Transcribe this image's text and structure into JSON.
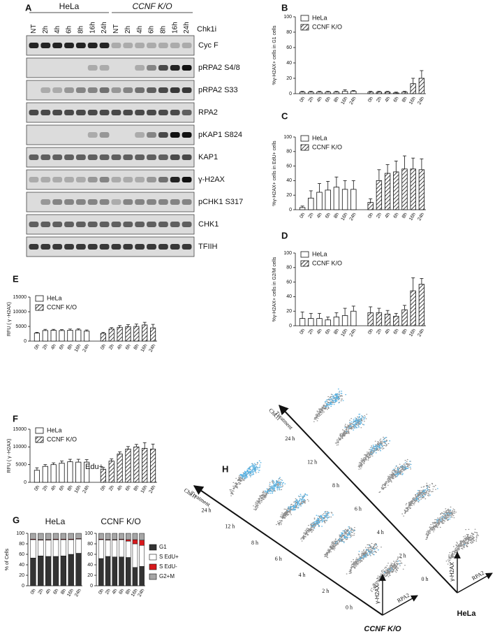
{
  "blot": {
    "panel": "A",
    "groups": [
      "HeLa",
      "CCNF K/O"
    ],
    "lanes": [
      "NT",
      "2h",
      "4h",
      "6h",
      "8h",
      "16h",
      "24h"
    ],
    "treatment": "Chk1i",
    "rows": [
      "Cyc F",
      "pRPA2 S4/8",
      "pRPA2 S33",
      "RPA2",
      "pKAP1 S824",
      "KAP1",
      "γ-H2AX",
      "pCHK1 S317",
      "CHK1",
      "TFIIH"
    ]
  },
  "chart_data": [
    {
      "type": "bar",
      "panel": "B",
      "ylabel": "%γ-H2AX+ cells in G1 cells",
      "categories": [
        "0h",
        "2h",
        "4h",
        "6h",
        "8h",
        "16h",
        "24h"
      ],
      "series": [
        {
          "name": "HeLa",
          "color": "#ffffff",
          "values": [
            2,
            2,
            2,
            2,
            2,
            3,
            3
          ],
          "errors": [
            1,
            1,
            1,
            1,
            1,
            2,
            1
          ]
        },
        {
          "name": "CCNF K/O",
          "color": "#ffffff",
          "pattern": "hatch",
          "values": [
            2,
            2,
            2,
            1,
            2,
            13,
            20
          ],
          "errors": [
            1,
            1,
            1,
            1,
            1,
            7,
            10
          ]
        }
      ],
      "ylim": [
        0,
        100
      ],
      "yticks": [
        0,
        20,
        40,
        60,
        80,
        100
      ],
      "legend": "upper left"
    },
    {
      "type": "bar",
      "panel": "C",
      "ylabel": "%γ-H2AX+ cells in EdU+ cells",
      "categories": [
        "0h",
        "2h",
        "4h",
        "6h",
        "8h",
        "16h",
        "24h"
      ],
      "series": [
        {
          "name": "HeLa",
          "color": "#ffffff",
          "values": [
            3,
            16,
            24,
            27,
            31,
            28,
            28
          ],
          "errors": [
            2,
            10,
            12,
            12,
            14,
            12,
            12
          ]
        },
        {
          "name": "CCNF K/O",
          "color": "#ffffff",
          "pattern": "hatch",
          "values": [
            10,
            40,
            50,
            52,
            56,
            56,
            55
          ],
          "errors": [
            5,
            15,
            12,
            15,
            18,
            15,
            15
          ]
        }
      ],
      "ylim": [
        0,
        100
      ],
      "yticks": [
        0,
        20,
        40,
        60,
        80,
        100
      ],
      "legend": "upper left"
    },
    {
      "type": "bar",
      "panel": "D",
      "ylabel": "%γ-H2AX+ cells in G2/M cells",
      "categories": [
        "0h",
        "2h",
        "4h",
        "6h",
        "8h",
        "16h",
        "24h"
      ],
      "series": [
        {
          "name": "HeLa",
          "color": "#ffffff",
          "values": [
            10,
            10,
            10,
            8,
            12,
            14,
            20
          ],
          "errors": [
            9,
            7,
            7,
            4,
            6,
            10,
            7
          ]
        },
        {
          "name": "CCNF K/O",
          "color": "#ffffff",
          "pattern": "hatch",
          "values": [
            18,
            18,
            16,
            13,
            22,
            48,
            57
          ],
          "errors": [
            8,
            6,
            5,
            4,
            6,
            18,
            8
          ]
        }
      ],
      "ylim": [
        0,
        100
      ],
      "yticks": [
        0,
        20,
        40,
        60,
        80,
        100
      ],
      "legend": "upper left"
    },
    {
      "type": "bar",
      "panel": "E",
      "ylabel": "RFU ( γ -H2AX)",
      "categories": [
        "0h",
        "2h",
        "4h",
        "6h",
        "8h",
        "16h",
        "24h"
      ],
      "series": [
        {
          "name": "HeLa",
          "color": "#ffffff",
          "values": [
            2700,
            3600,
            3700,
            3600,
            3700,
            3800,
            3400
          ],
          "errors": [
            300,
            400,
            300,
            300,
            400,
            400,
            400
          ]
        },
        {
          "name": "CCNF K/O",
          "color": "#ffffff",
          "pattern": "hatch",
          "values": [
            2600,
            4100,
            4700,
            4900,
            5000,
            5500,
            4500
          ],
          "errors": [
            400,
            500,
            600,
            700,
            800,
            900,
            1200
          ]
        }
      ],
      "ylim": [
        0,
        15000
      ],
      "yticks": [
        0,
        5000,
        10000,
        15000
      ],
      "legend": "upper left"
    },
    {
      "type": "bar",
      "panel": "F",
      "ylabel": "RFU ( γ -H2AX)",
      "annotation": "Edu+",
      "categories": [
        "0h",
        "2h",
        "4h",
        "6h",
        "8h",
        "16h",
        "24h"
      ],
      "series": [
        {
          "name": "HeLa",
          "color": "#ffffff",
          "values": [
            3400,
            4500,
            5000,
            5400,
            5800,
            5700,
            5700
          ],
          "errors": [
            700,
            500,
            500,
            600,
            700,
            800,
            700
          ]
        },
        {
          "name": "CCNF K/O",
          "color": "#ffffff",
          "pattern": "hatch",
          "values": [
            3700,
            6000,
            8000,
            9400,
            10000,
            9600,
            9400
          ],
          "errors": [
            500,
            600,
            600,
            700,
            700,
            1600,
            1400
          ]
        }
      ],
      "ylim": [
        0,
        15000
      ],
      "yticks": [
        0,
        5000,
        10000,
        15000
      ],
      "legend": "upper left"
    },
    {
      "type": "stacked_bar",
      "panel": "G",
      "title": "HeLa",
      "ylabel": "% of Cells",
      "categories": [
        "0h",
        "2h",
        "4h",
        "6h",
        "8h",
        "16h",
        "24h"
      ],
      "series": [
        {
          "name": "G1",
          "color": "#333333",
          "values": [
            53,
            57,
            56,
            56,
            57,
            60,
            62
          ]
        },
        {
          "name": "S EdU+",
          "color": "#ffffff",
          "values": [
            35,
            30,
            31,
            32,
            31,
            28,
            27
          ]
        },
        {
          "name": "S EdU-",
          "color": "#d7191c",
          "values": [
            1,
            1,
            1,
            1,
            1,
            1,
            1
          ]
        },
        {
          "name": "G2+M",
          "color": "#a6a6a6",
          "values": [
            11,
            12,
            12,
            11,
            11,
            11,
            10
          ]
        }
      ],
      "ylim": [
        0,
        100
      ],
      "yticks": [
        0,
        20,
        40,
        60,
        80,
        100
      ]
    },
    {
      "type": "stacked_bar",
      "title": "CCNF K/O",
      "categories": [
        "0h",
        "2h",
        "4h",
        "6h",
        "8h",
        "16h",
        "24h"
      ],
      "series": [
        {
          "name": "G1",
          "color": "#333333",
          "values": [
            52,
            56,
            55,
            55,
            54,
            35,
            37
          ]
        },
        {
          "name": "S EdU+",
          "color": "#ffffff",
          "values": [
            36,
            31,
            32,
            33,
            31,
            45,
            40
          ]
        },
        {
          "name": "S EdU-",
          "color": "#d7191c",
          "values": [
            1,
            1,
            1,
            1,
            3,
            8,
            10
          ]
        },
        {
          "name": "G2+M",
          "color": "#a6a6a6",
          "values": [
            11,
            12,
            12,
            11,
            12,
            12,
            13
          ]
        }
      ],
      "ylim": [
        0,
        100
      ],
      "yticks": [
        0,
        20,
        40,
        60,
        80,
        100
      ],
      "legend": "right"
    }
  ],
  "panel_h": {
    "panel": "H",
    "times": [
      "0 h",
      "2 h",
      "4 h",
      "6 h",
      "8 h",
      "12 h",
      "24 h"
    ],
    "axis_label_lines": [
      "Chk1i",
      "Treatment"
    ],
    "y_axis": "γ-H2AX",
    "x_axis": "RPA2",
    "groups": [
      "HeLa",
      "CCNF K/O"
    ]
  }
}
